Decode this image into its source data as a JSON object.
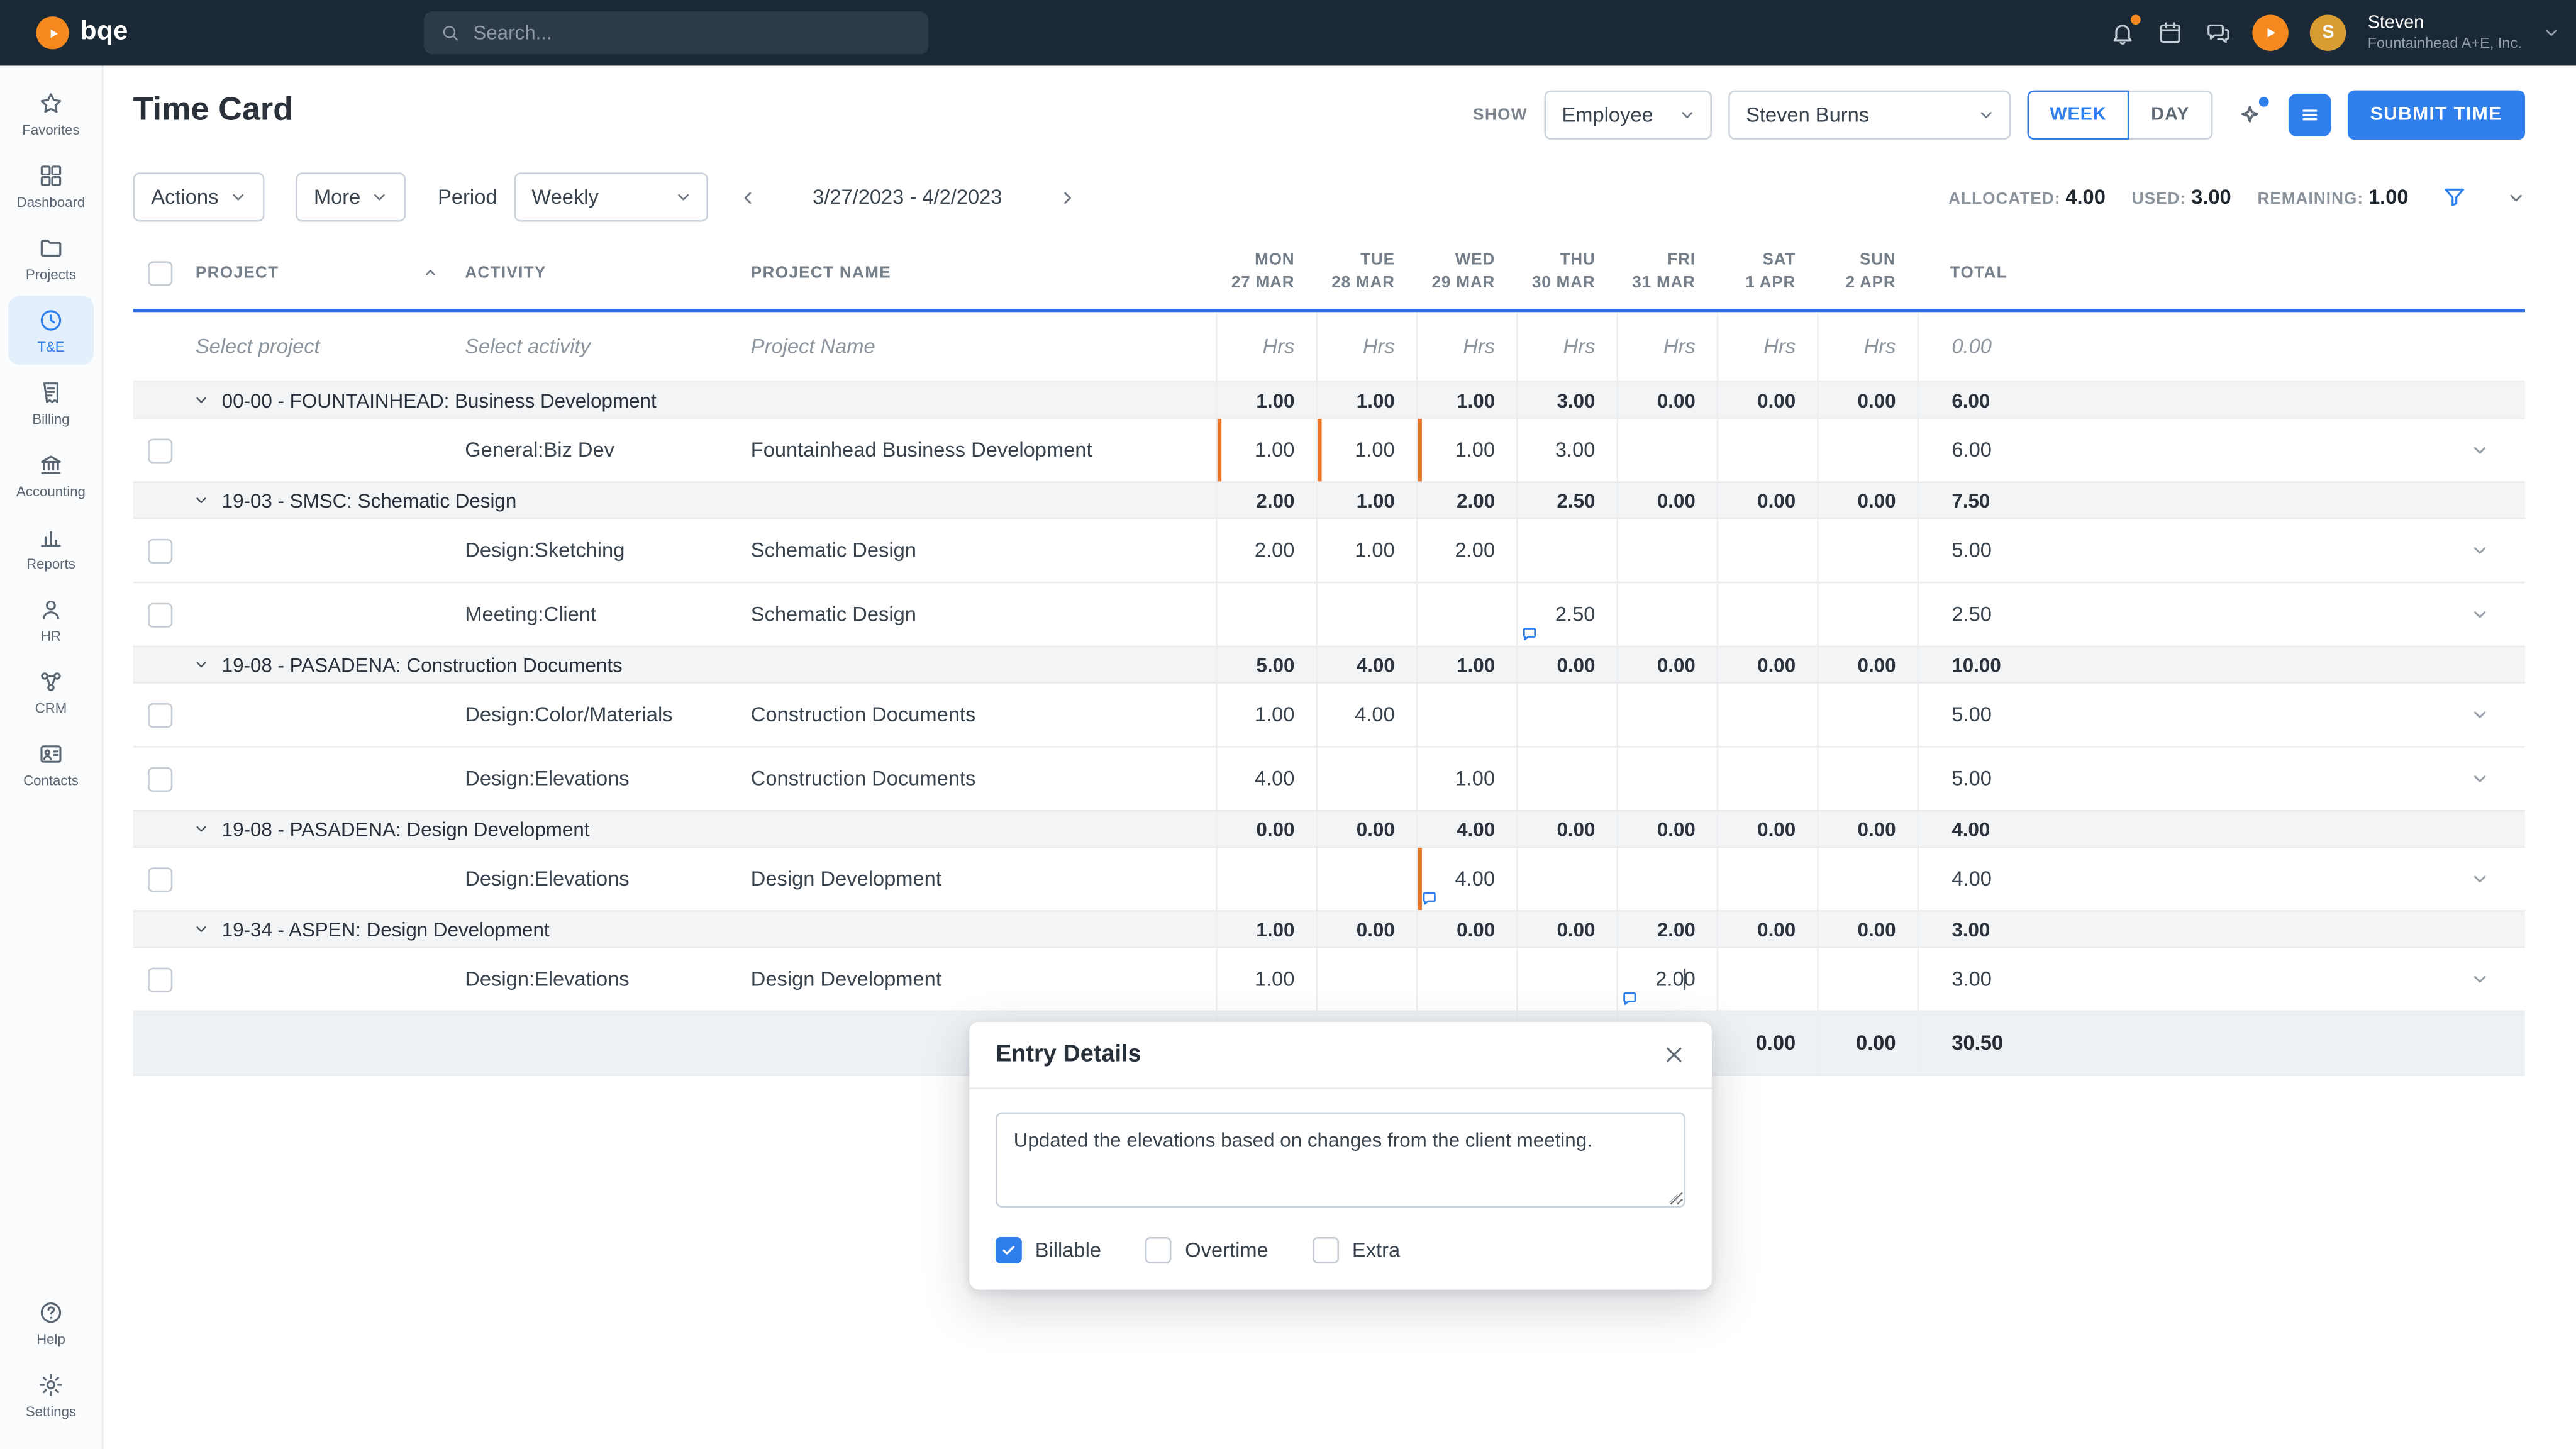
{
  "colors": {
    "accent": "#2f80ed",
    "flag": "#e8742a",
    "topbar": "#1b2936",
    "avatar": "#d89c33",
    "brand_orange": "#f5891f"
  },
  "topbar": {
    "brand": "bqe",
    "search": {
      "placeholder": "Search...",
      "icon": "search-icon"
    },
    "user": {
      "initial": "S",
      "name": "Steven",
      "company": "Fountainhead A+E, Inc."
    }
  },
  "sidebar": {
    "items": [
      {
        "label": "Favorites",
        "icon": "star-icon",
        "active": false
      },
      {
        "label": "Dashboard",
        "icon": "dashboard-icon",
        "active": false
      },
      {
        "label": "Projects",
        "icon": "folder-icon",
        "active": false
      },
      {
        "label": "T&E",
        "icon": "clock-icon",
        "active": true
      },
      {
        "label": "Billing",
        "icon": "invoice-icon",
        "active": false
      },
      {
        "label": "Accounting",
        "icon": "bank-icon",
        "active": false
      },
      {
        "label": "Reports",
        "icon": "chart-icon",
        "active": false
      },
      {
        "label": "HR",
        "icon": "person-icon",
        "active": false
      },
      {
        "label": "CRM",
        "icon": "crm-icon",
        "active": false
      },
      {
        "label": "Contacts",
        "icon": "contacts-icon",
        "active": false
      }
    ],
    "bottom_items": [
      {
        "label": "Help",
        "icon": "help-icon",
        "active": false
      },
      {
        "label": "Settings",
        "icon": "gear-icon",
        "active": false
      }
    ]
  },
  "header": {
    "title": "Time Card",
    "show_label": "SHOW",
    "show_value": "Employee",
    "employee_value": "Steven Burns",
    "view_week": "WEEK",
    "view_day": "DAY",
    "submit_label": "SUBMIT TIME"
  },
  "toolbar": {
    "actions": "Actions",
    "more": "More",
    "period_label": "Period",
    "period_value": "Weekly",
    "date_range": "3/27/2023 - 4/2/2023",
    "metrics": [
      {
        "label": "ALLOCATED:",
        "value": "4.00"
      },
      {
        "label": "USED:",
        "value": "3.00"
      },
      {
        "label": "REMAINING:",
        "value": "1.00"
      }
    ]
  },
  "table": {
    "columns": {
      "project": "PROJECT",
      "activity": "ACTIVITY",
      "project_name": "PROJECT NAME",
      "total": "TOTAL"
    },
    "days": [
      {
        "dow": "MON",
        "date": "27 MAR"
      },
      {
        "dow": "TUE",
        "date": "28 MAR"
      },
      {
        "dow": "WED",
        "date": "29 MAR"
      },
      {
        "dow": "THU",
        "date": "30 MAR"
      },
      {
        "dow": "FRI",
        "date": "31 MAR"
      },
      {
        "dow": "SAT",
        "date": "1 APR"
      },
      {
        "dow": "SUN",
        "date": "2 APR"
      }
    ],
    "entry_row": {
      "project": "Select project",
      "activity": "Select activity",
      "project_name": "Project Name",
      "day_placeholder": "Hrs",
      "total": "0.00"
    },
    "groups": [
      {
        "name": "00-00 - FOUNTAINHEAD: Business Development",
        "day_values": [
          "1.00",
          "1.00",
          "1.00",
          "3.00",
          "0.00",
          "0.00",
          "0.00"
        ],
        "total": "6.00",
        "rows": [
          {
            "activity": "General:Biz Dev",
            "project_name": "Fountainhead Business Development",
            "day_values": [
              "1.00",
              "1.00",
              "1.00",
              "3.00",
              "",
              "",
              ""
            ],
            "total": "6.00",
            "flag_days": [
              0,
              1,
              2
            ],
            "note_days": [],
            "editing_day": null
          }
        ]
      },
      {
        "name": "19-03 - SMSC: Schematic Design",
        "day_values": [
          "2.00",
          "1.00",
          "2.00",
          "2.50",
          "0.00",
          "0.00",
          "0.00"
        ],
        "total": "7.50",
        "rows": [
          {
            "activity": "Design:Sketching",
            "project_name": "Schematic Design",
            "day_values": [
              "2.00",
              "1.00",
              "2.00",
              "",
              "",
              "",
              ""
            ],
            "total": "5.00",
            "flag_days": [],
            "note_days": [],
            "editing_day": null
          },
          {
            "activity": "Meeting:Client",
            "project_name": "Schematic Design",
            "day_values": [
              "",
              "",
              "",
              "2.50",
              "",
              "",
              ""
            ],
            "total": "2.50",
            "flag_days": [],
            "note_days": [
              3
            ],
            "editing_day": null
          }
        ]
      },
      {
        "name": "19-08 - PASADENA: Construction Documents",
        "day_values": [
          "5.00",
          "4.00",
          "1.00",
          "0.00",
          "0.00",
          "0.00",
          "0.00"
        ],
        "total": "10.00",
        "rows": [
          {
            "activity": "Design:Color/Materials",
            "project_name": "Construction Documents",
            "day_values": [
              "1.00",
              "4.00",
              "",
              "",
              "",
              "",
              ""
            ],
            "total": "5.00",
            "flag_days": [],
            "note_days": [],
            "editing_day": null
          },
          {
            "activity": "Design:Elevations",
            "project_name": "Construction Documents",
            "day_values": [
              "4.00",
              "",
              "1.00",
              "",
              "",
              "",
              ""
            ],
            "total": "5.00",
            "flag_days": [],
            "note_days": [],
            "editing_day": null
          }
        ]
      },
      {
        "name": "19-08 - PASADENA: Design Development",
        "day_values": [
          "0.00",
          "0.00",
          "4.00",
          "0.00",
          "0.00",
          "0.00",
          "0.00"
        ],
        "total": "4.00",
        "rows": [
          {
            "activity": "Design:Elevations",
            "project_name": "Design Development",
            "day_values": [
              "",
              "",
              "4.00",
              "",
              "",
              "",
              ""
            ],
            "total": "4.00",
            "flag_days": [
              2
            ],
            "note_days": [
              2
            ],
            "editing_day": null
          }
        ]
      },
      {
        "name": "19-34 - ASPEN: Design Development",
        "day_values": [
          "1.00",
          "0.00",
          "0.00",
          "0.00",
          "2.00",
          "0.00",
          "0.00"
        ],
        "total": "3.00",
        "rows": [
          {
            "activity": "Design:Elevations",
            "project_name": "Design Development",
            "day_values": [
              "1.00",
              "",
              "",
              "",
              "2.00",
              "",
              ""
            ],
            "total": "3.00",
            "flag_days": [],
            "note_days": [
              4
            ],
            "editing_day": 4
          }
        ]
      }
    ],
    "footer": {
      "day_values": [
        "",
        "",
        "",
        "",
        "",
        "0.00",
        "0.00"
      ],
      "total": "30.50"
    }
  },
  "modal": {
    "title": "Entry Details",
    "memo": "Updated the elevations based on changes from the client meeting.",
    "checkboxes": [
      {
        "label": "Billable",
        "checked": true
      },
      {
        "label": "Overtime",
        "checked": false
      },
      {
        "label": "Extra",
        "checked": false
      }
    ]
  }
}
